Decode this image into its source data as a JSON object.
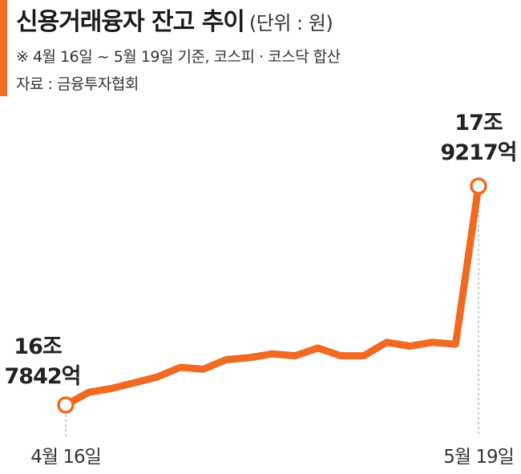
{
  "header": {
    "title": "신용거래융자 잔고 추이",
    "unit": "(단위 : 원)",
    "note": "※ 4월 16일 ~ 5월 19일 기준, 코스피 · 코스닥 합산",
    "source": "자료 : 금융투자협회"
  },
  "colors": {
    "accent": "#f06a22",
    "text": "#222222",
    "guide": "#999999"
  },
  "chart_data": {
    "type": "line",
    "title": "신용거래융자 잔고 추이",
    "x_labels": [
      "4월 16일",
      "5월 19일"
    ],
    "series": [
      {
        "values": [
          16.7842,
          16.85,
          16.87,
          16.9,
          16.93,
          16.98,
          16.97,
          17.02,
          17.03,
          17.05,
          17.04,
          17.08,
          17.04,
          17.04,
          17.11,
          17.09,
          17.11,
          17.1,
          17.9217
        ]
      }
    ],
    "value_unit": "조 원",
    "annotations": [
      {
        "point": "first",
        "line1": "16조",
        "line2": "7842억"
      },
      {
        "point": "last",
        "line1": "17조",
        "line2": "9217억"
      }
    ],
    "grid": false,
    "legend": "none"
  }
}
